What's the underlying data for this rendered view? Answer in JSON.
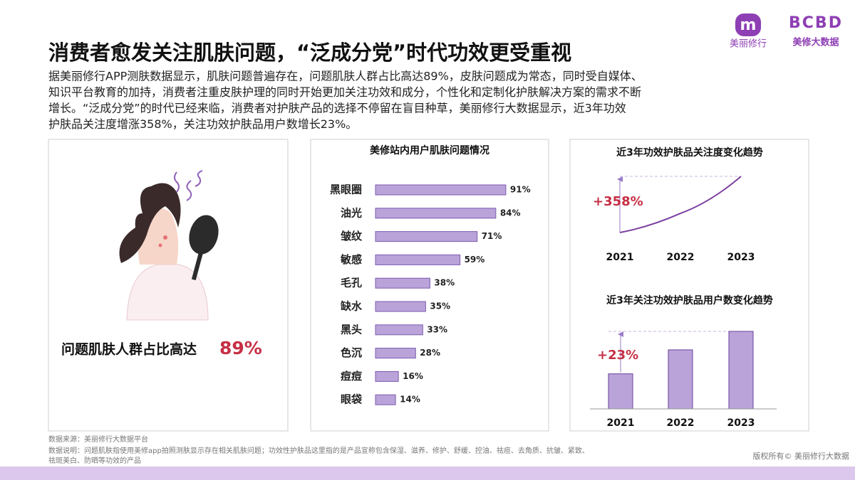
{
  "header": {
    "title": "消费者愈发关注肌肤问题，“泛成分党”时代功效更受重视",
    "brand_left": "美丽修行",
    "brand_right_mark": "BCBD",
    "brand_right": "美修大数据"
  },
  "intro": {
    "lines": [
      "据美丽修行APP测肤数据显示，肌肤问题普遍存在，问题肌肤人群占比高达89%，皮肤问题成为常态，同时受自媒体、",
      "知识平台教育的加持，消费者注重皮肤护理的同时开始更加关注功效和成分，个性化和定制化护肤解决方案的需求不断",
      "增长。“泛成分党”的时代已经来临，消费者对护肤产品的选择不停留在盲目种草，美丽修行大数据显示，近3年功效",
      "护肤品关注度增涨358%，关注功效护肤品用户数增长23%。"
    ]
  },
  "illustration": {
    "caption": "问题肌肤人群占比高达",
    "highlight": "89%"
  },
  "chart_data": [
    {
      "type": "hbar",
      "title": "美修站内用户肌肤问题情况",
      "categories": [
        "黑眼圈",
        "油光",
        "皱纹",
        "敏感",
        "毛孔",
        "缺水",
        "黑头",
        "色沉",
        "痘痘",
        "眼袋"
      ],
      "values": [
        91,
        84,
        71,
        59,
        38,
        35,
        33,
        28,
        16,
        14
      ],
      "value_labels": [
        "91%",
        "84%",
        "71%",
        "59%",
        "38%",
        "35%",
        "33%",
        "28%",
        "16%",
        "14%"
      ],
      "color": "#b9a3d9",
      "edge_color": "#7e5bb0"
    },
    {
      "type": "line",
      "title": "近3年功效护肤品关注度变化趋势",
      "categories": [
        "2021",
        "2022",
        "2023"
      ],
      "values": [
        100,
        222,
        458
      ],
      "ylim": [
        100,
        458
      ],
      "annotation": "+358%",
      "color": "#7b3fa0"
    },
    {
      "type": "bar",
      "title": "近3年关注功效护肤品用户数变化趋势",
      "categories": [
        "2021",
        "2022",
        "2023"
      ],
      "values": [
        100,
        113,
        123
      ],
      "ylim": [
        81,
        123
      ],
      "annotation": "+23%",
      "color": "#b9a3d9",
      "edge_color": "#6a3f9a"
    }
  ],
  "footer": {
    "source": "数据来源：美丽修行大数据平台",
    "notes": [
      "数据说明：问题肌肤指使用美修app拍照测肤显示存在相关肌肤问题；功效性护肤品这里指的是产品宣称包含保湿、滋养、修护、舒缓、控油、祛痘、去角质、抗皱、紧致、",
      "祛斑美白、防晒等功效的产品"
    ],
    "copyright": "版权所有© 美丽修行大数据"
  }
}
